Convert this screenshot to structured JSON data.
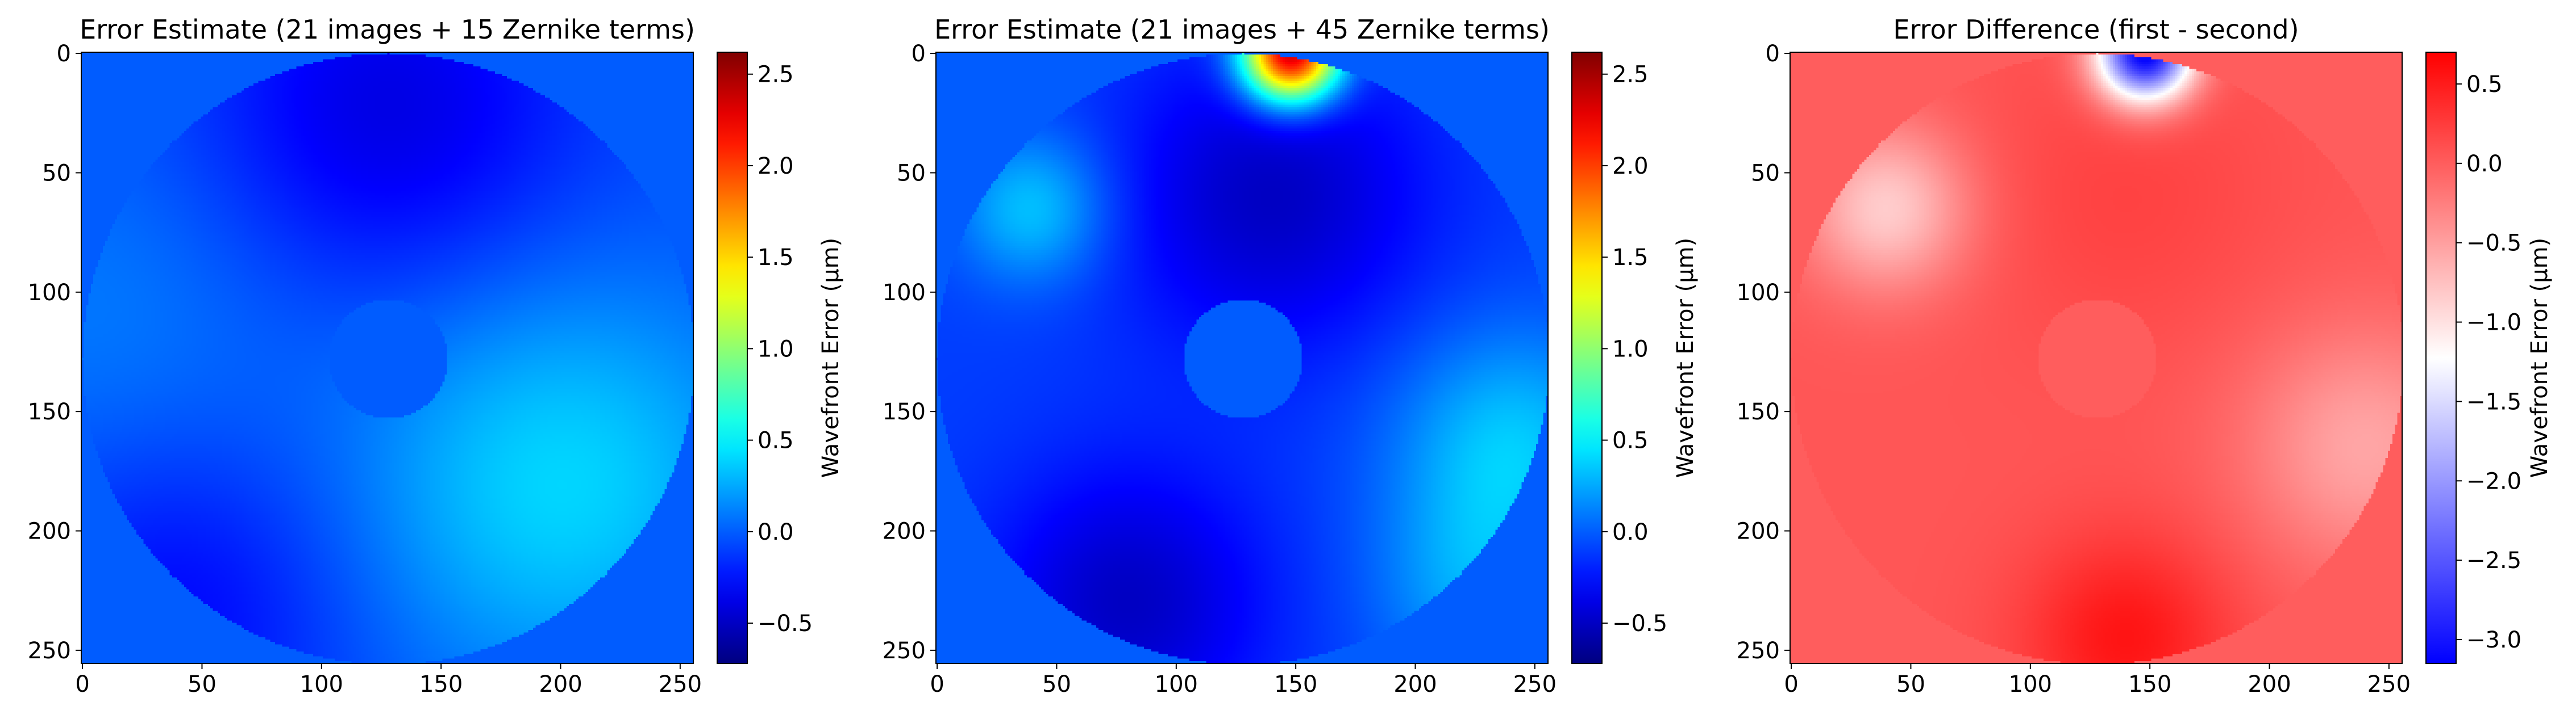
{
  "chart_data": [
    {
      "type": "heatmap",
      "title": "Error Estimate (21 images + 15 Zernike terms)",
      "xlim": [
        0,
        255
      ],
      "ylim": [
        255,
        0
      ],
      "xticks": [
        "0",
        "50",
        "100",
        "150",
        "200",
        "250"
      ],
      "yticks": [
        "0",
        "50",
        "100",
        "150",
        "200",
        "250"
      ],
      "colormap": "jet",
      "colorbar": {
        "label": "Wavefront Error (µm)",
        "range": [
          -0.72,
          2.62
        ],
        "ticks": [
          "−0.5",
          "0.0",
          "0.5",
          "1.0",
          "1.5",
          "2.0",
          "2.5"
        ]
      },
      "background_value": 0.0,
      "field": {
        "aperture_outer_radius": 128,
        "aperture_inner_radius": 25,
        "center": [
          128,
          128
        ],
        "base": -0.05,
        "min_value": -0.45,
        "max_value": 0.45,
        "features": [
          {
            "x": 200,
            "y": 180,
            "amplitude": 0.45,
            "width": 60
          },
          {
            "x": 10,
            "y": 110,
            "amplitude": 0.15,
            "width": 60
          },
          {
            "x": 128,
            "y": 25,
            "amplitude": -0.35,
            "width": 55
          },
          {
            "x": 40,
            "y": 230,
            "amplitude": -0.25,
            "width": 50
          }
        ]
      }
    },
    {
      "type": "heatmap",
      "title": "Error Estimate (21 images + 45 Zernike terms)",
      "xlim": [
        0,
        255
      ],
      "ylim": [
        255,
        0
      ],
      "xticks": [
        "0",
        "50",
        "100",
        "150",
        "200",
        "250"
      ],
      "yticks": [
        "0",
        "50",
        "100",
        "150",
        "200",
        "250"
      ],
      "colormap": "jet",
      "colorbar": {
        "label": "Wavefront Error (µm)",
        "range": [
          -0.72,
          2.62
        ],
        "ticks": [
          "−0.5",
          "0.0",
          "0.5",
          "1.0",
          "1.5",
          "2.0",
          "2.5"
        ]
      },
      "background_value": 0.0,
      "field": {
        "aperture_outer_radius": 128,
        "aperture_inner_radius": 25,
        "center": [
          128,
          128
        ],
        "base": -0.1,
        "min_value": -0.7,
        "max_value": 2.6,
        "features": [
          {
            "x": 148,
            "y": 0,
            "amplitude": 2.6,
            "width": 14
          },
          {
            "x": 40,
            "y": 65,
            "amplitude": 0.45,
            "width": 22
          },
          {
            "x": 240,
            "y": 165,
            "amplitude": 0.45,
            "width": 35
          },
          {
            "x": 225,
            "y": 225,
            "amplitude": 0.3,
            "width": 30
          },
          {
            "x": 140,
            "y": 60,
            "amplitude": -0.4,
            "width": 45
          },
          {
            "x": 80,
            "y": 230,
            "amplitude": -0.4,
            "width": 40
          }
        ]
      }
    },
    {
      "type": "heatmap",
      "title": "Error Difference (first - second)",
      "xlim": [
        0,
        255
      ],
      "ylim": [
        255,
        0
      ],
      "xticks": [
        "0",
        "50",
        "100",
        "150",
        "200",
        "250"
      ],
      "yticks": [
        "0",
        "50",
        "100",
        "150",
        "200",
        "250"
      ],
      "colormap": "bwr",
      "colorbar": {
        "label": "Wavefront Error (µm)",
        "range": [
          -3.15,
          0.7
        ],
        "ticks": [
          "−3.0",
          "−2.5",
          "−2.0",
          "−1.5",
          "−1.0",
          "−0.5",
          "0.0",
          "0.5"
        ]
      },
      "background_value": 0.0,
      "field": {
        "aperture_outer_radius": 128,
        "aperture_inner_radius": 25,
        "center": [
          128,
          128
        ],
        "base": 0.05,
        "min_value": -3.1,
        "max_value": 0.7,
        "features": [
          {
            "x": 148,
            "y": 0,
            "amplitude": -3.3,
            "width": 14
          },
          {
            "x": 40,
            "y": 65,
            "amplitude": -0.9,
            "width": 24
          },
          {
            "x": 240,
            "y": 165,
            "amplitude": -0.6,
            "width": 35
          },
          {
            "x": 140,
            "y": 245,
            "amplitude": 0.5,
            "width": 30
          },
          {
            "x": 140,
            "y": 60,
            "amplitude": 0.15,
            "width": 45
          }
        ]
      }
    }
  ]
}
